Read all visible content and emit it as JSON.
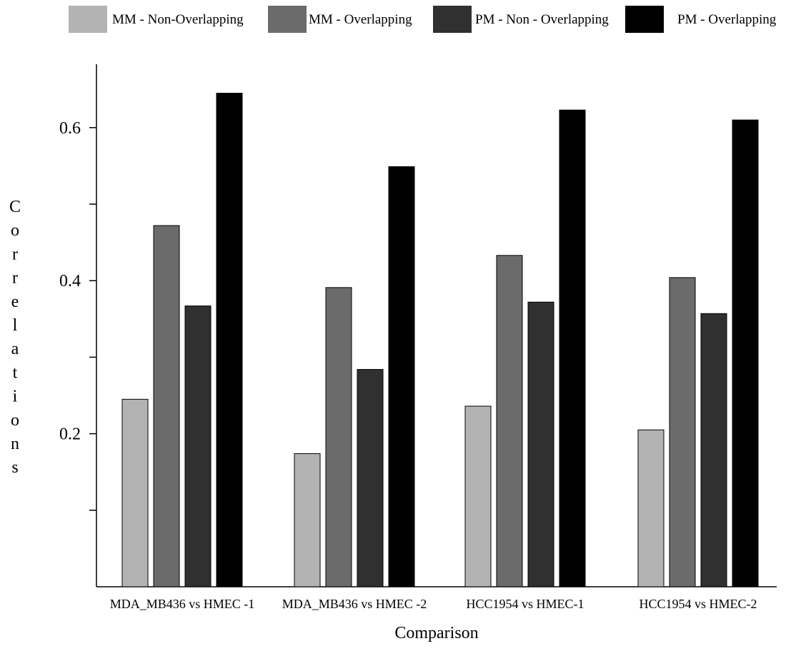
{
  "chart_data": {
    "type": "bar",
    "title": "",
    "xlabel": "Comparison",
    "ylabel": "Correlations",
    "categories": [
      "MDA_MB436 vs HMEC -1",
      "MDA_MB436 vs HMEC -2",
      "HCC1954 vs HMEC-1",
      "HCC1954 vs HMEC-2"
    ],
    "series": [
      {
        "name": "MM - Non-Overlapping",
        "color": "#b3b3b3",
        "values": [
          0.245,
          0.174,
          0.236,
          0.205
        ]
      },
      {
        "name": "MM - Overlapping",
        "color": "#6b6b6b",
        "values": [
          0.472,
          0.391,
          0.433,
          0.404
        ]
      },
      {
        "name": "PM - Non - Overlapping",
        "color": "#303030",
        "values": [
          0.367,
          0.284,
          0.372,
          0.357
        ]
      },
      {
        "name": "PM - Overlapping",
        "color": "#000000",
        "values": [
          0.645,
          0.549,
          0.623,
          0.61
        ]
      }
    ],
    "ylim": [
      0.0,
      0.68
    ],
    "yticks": [
      0.1,
      0.2,
      0.3,
      0.4,
      0.5,
      0.6
    ],
    "ytick_labels": [
      "",
      "0.2",
      "",
      "0.4",
      "",
      "0.6"
    ],
    "grid": false,
    "legend_position": "top"
  }
}
